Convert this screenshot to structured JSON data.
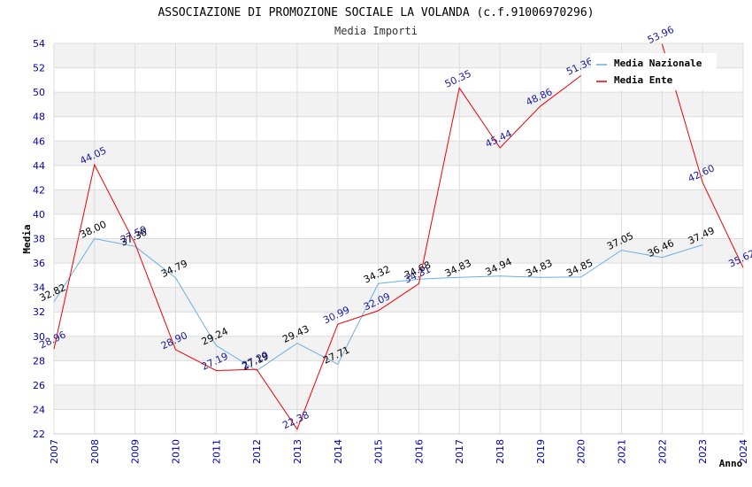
{
  "chart_data": {
    "type": "line",
    "title": "ASSOCIAZIONE DI PROMOZIONE SOCIALE LA VOLANDA (c.f.91006970296)",
    "subtitle": "Media Importi",
    "xlabel": "Anno",
    "ylabel": "Media",
    "ylim": [
      22,
      54
    ],
    "ytick_step": 2,
    "x": [
      "2007",
      "2008",
      "2009",
      "2010",
      "2011",
      "2012",
      "2013",
      "2014",
      "2015",
      "2016",
      "2017",
      "2018",
      "2019",
      "2020",
      "2021",
      "2022",
      "2023",
      "2024"
    ],
    "series": [
      {
        "name": "Media Nazionale",
        "color": "#6aaee6",
        "label_color": "#000000",
        "values": [
          32.82,
          38.0,
          37.36,
          34.79,
          29.24,
          27.19,
          29.43,
          27.71,
          34.32,
          34.68,
          34.83,
          34.94,
          34.83,
          34.85,
          37.05,
          36.46,
          37.49,
          null
        ]
      },
      {
        "name": "Media Ente",
        "color": "#ee0000",
        "label_color": "#1a1aa0",
        "values": [
          28.96,
          44.05,
          37.59,
          28.9,
          27.19,
          27.29,
          22.38,
          30.99,
          32.09,
          34.31,
          50.35,
          45.44,
          48.86,
          51.36,
          null,
          53.96,
          42.6,
          35.62
        ]
      }
    ],
    "legend_position": "top-right"
  }
}
